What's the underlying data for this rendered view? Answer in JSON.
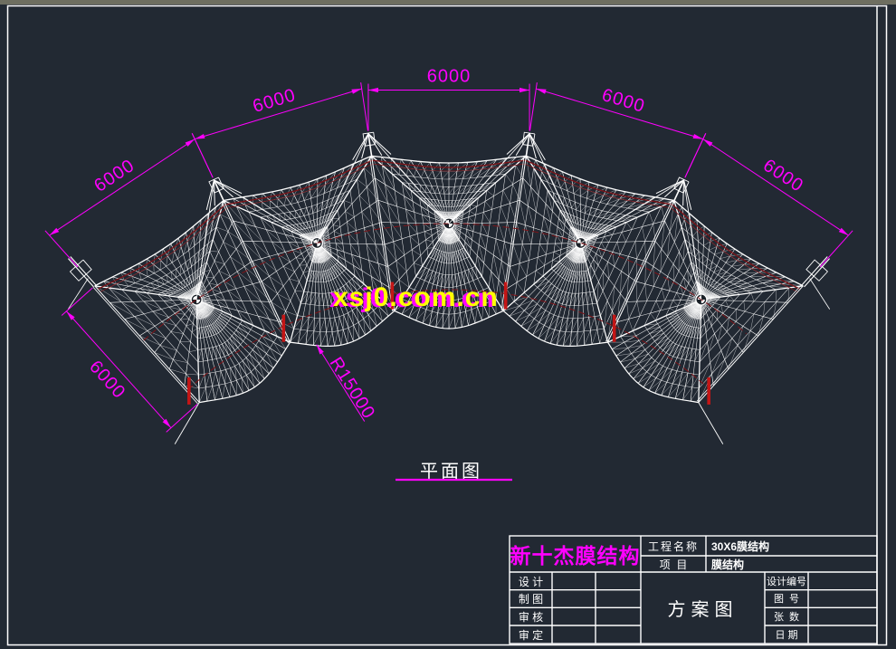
{
  "sheet": {
    "plan_label": "平面图",
    "watermark": "xsj0.com.cn"
  },
  "annotations": {
    "radius_label": "R15000",
    "dim_labels": [
      "6000",
      "6000",
      "6000",
      "6000",
      "6000",
      "6000"
    ]
  },
  "structure_params": {
    "bays": 5,
    "bay_width_mm": 6000,
    "depth_mm": 6000,
    "inner_radius_mm": 15000
  },
  "title_block": {
    "company": "新十杰膜结构",
    "project_label": "工程名称",
    "project_value": "30X6膜结构",
    "item_label": "项  目",
    "item_value": "膜结构",
    "drawing_title": "方案图",
    "sign_rows": [
      {
        "label": "设 计"
      },
      {
        "label": "制 图"
      },
      {
        "label": "审 核"
      },
      {
        "label": "审 定"
      }
    ],
    "info_rows": [
      {
        "label": "设计编号"
      },
      {
        "label": "图  号"
      },
      {
        "label": "张  数"
      },
      {
        "label": "日 期"
      }
    ]
  },
  "colors": {
    "background": "#222933",
    "line": "#ffffff",
    "dimension": "#ff00ff",
    "edge_cable": "#7e1418",
    "anchor": "#c41616",
    "watermark_front": "#ffff00",
    "watermark_back": "#ff00ff"
  }
}
